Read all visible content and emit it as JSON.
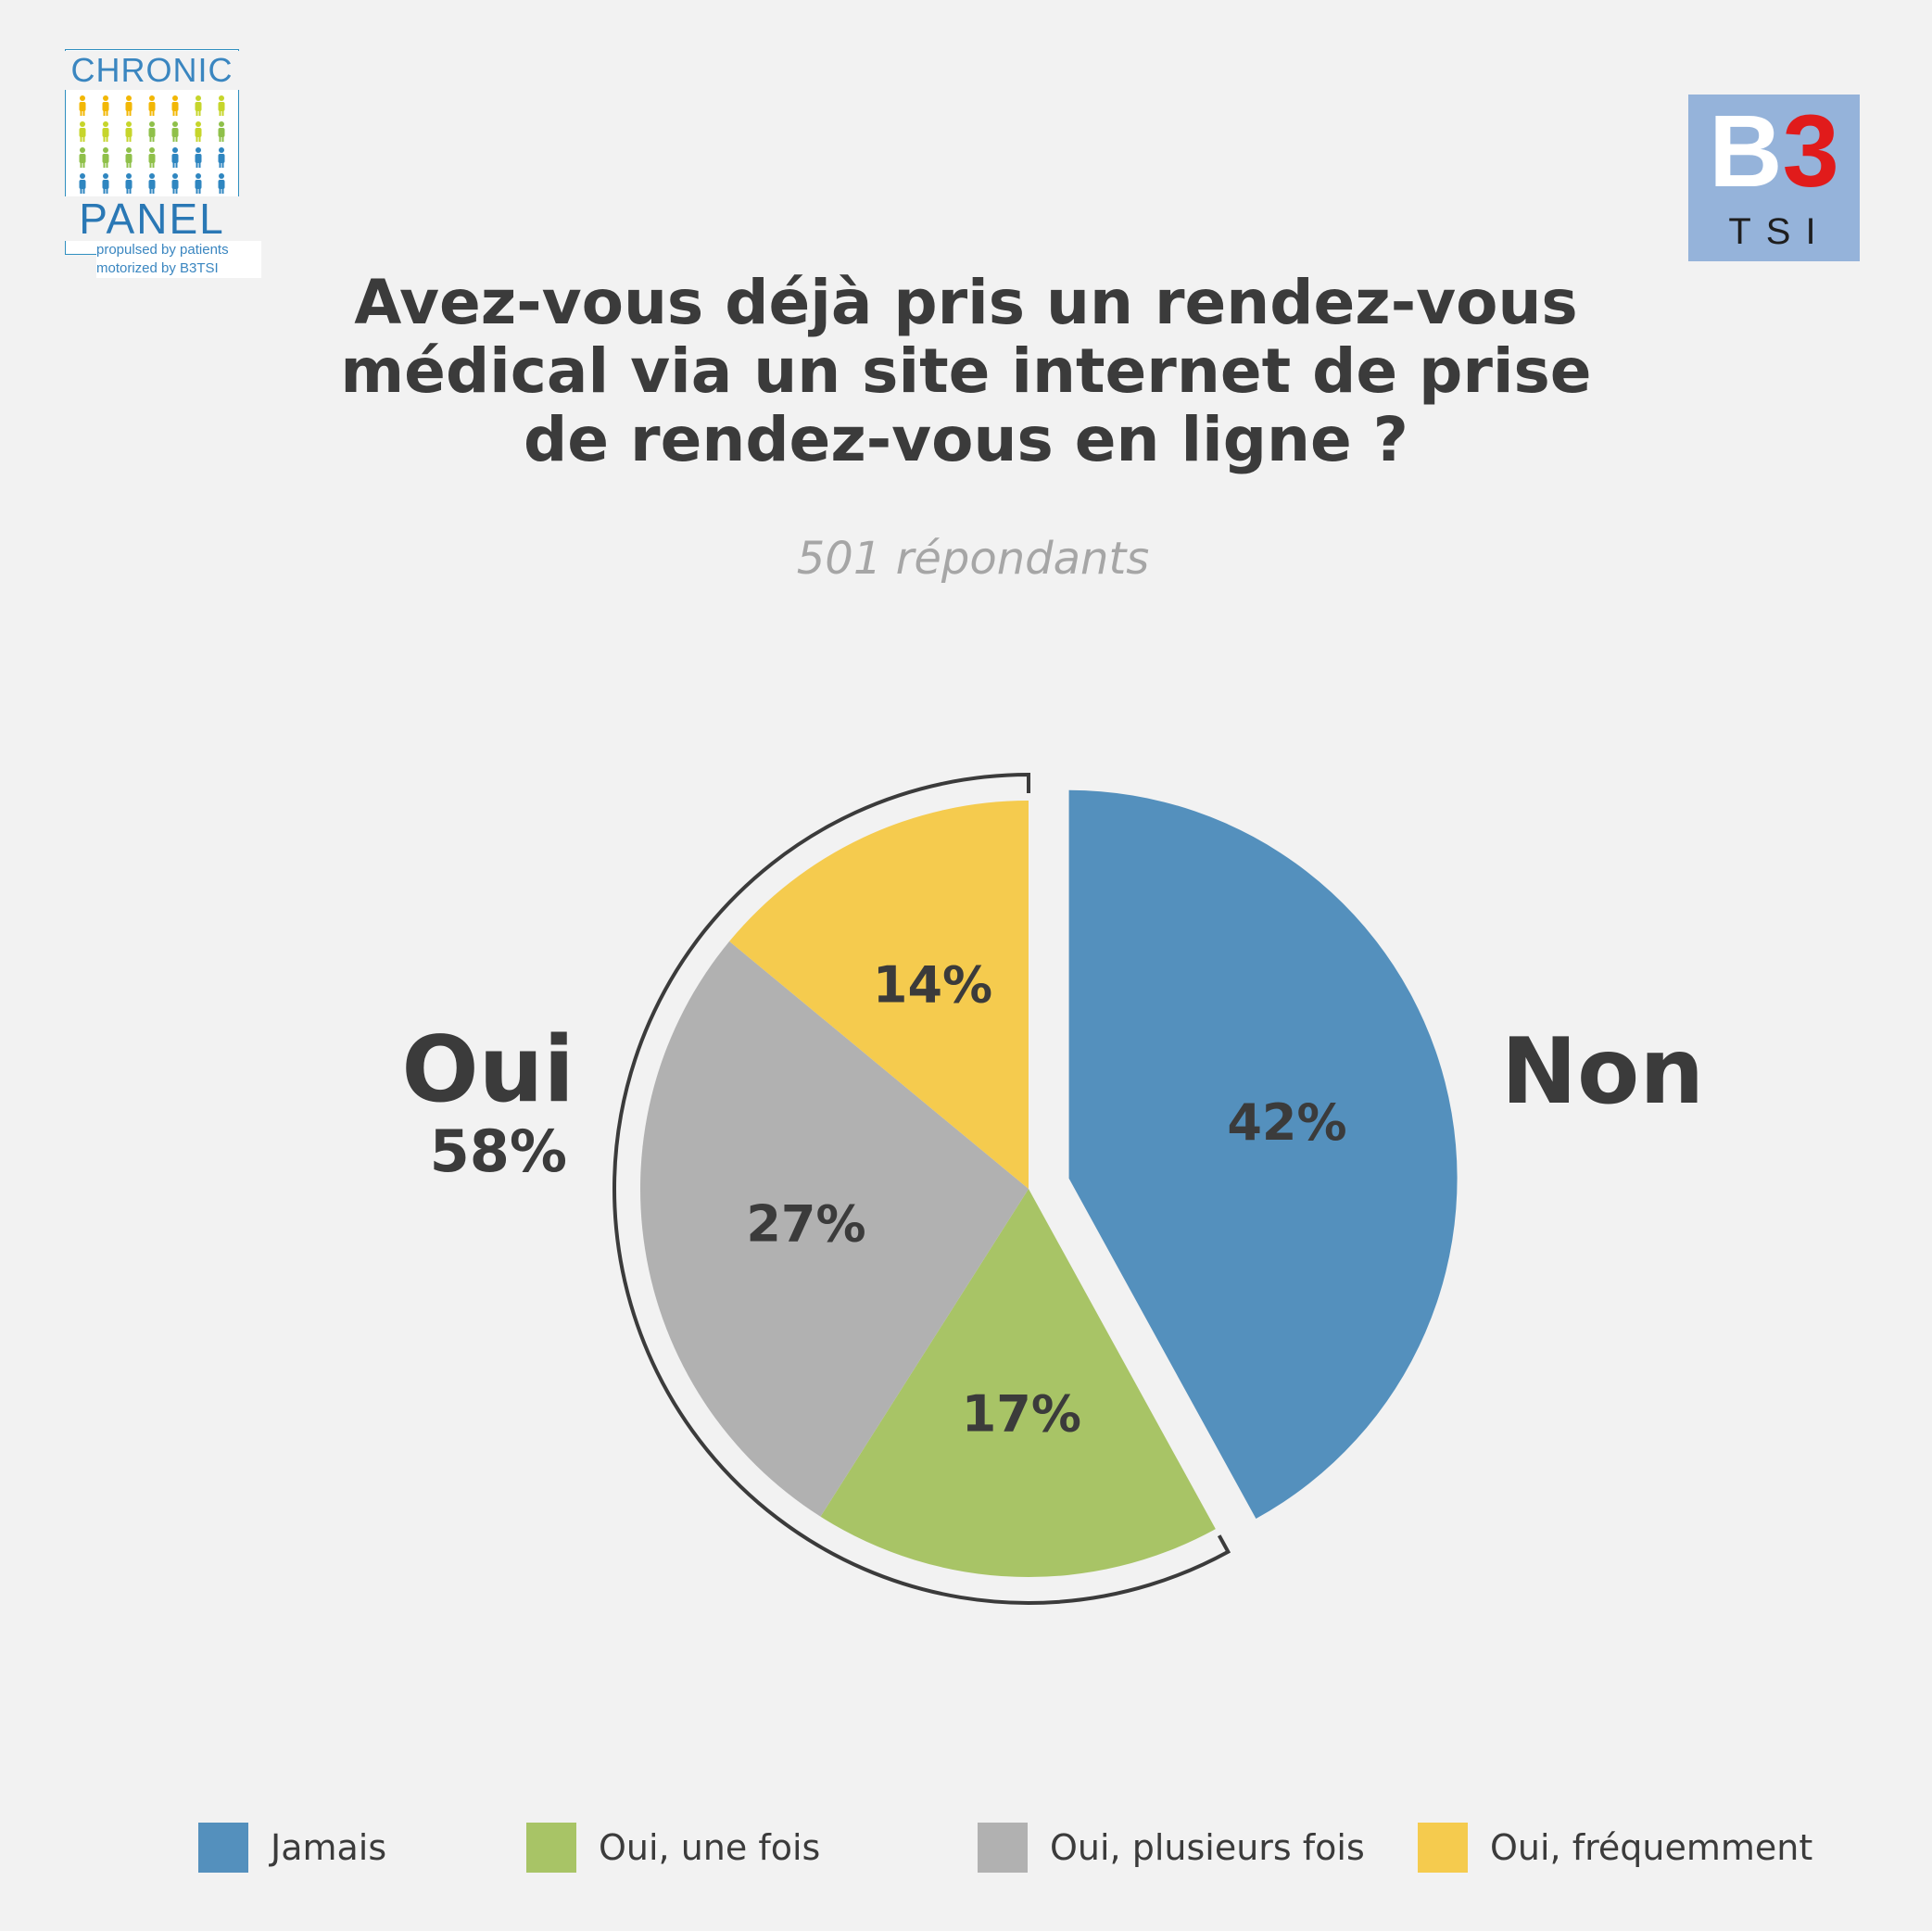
{
  "logos": {
    "chronic_panel": {
      "top": "CHRONIC",
      "bottom": "PANEL",
      "line1": "propulsed by patients",
      "line2": "motorized by B3TSI"
    },
    "b3tsi": {
      "b": "B",
      "three": "3",
      "tsi": "TSI"
    }
  },
  "header": {
    "title_lines": [
      "Avez-vous déjà pris un rendez-vous",
      "médical via un site internet de prise",
      "de rendez-vous en ligne ?"
    ],
    "subtitle": "501 répondants"
  },
  "groups": {
    "oui": {
      "label": "Oui",
      "pct": "58%"
    },
    "non": {
      "label": "Non"
    }
  },
  "colors": {
    "jamais": "#5490bd",
    "une_fois": "#a8c466",
    "plusieurs": "#b1b1b1",
    "frequemment": "#f5cb4e",
    "text": "#3b3b3b"
  },
  "chart_data": {
    "type": "pie",
    "title": "Avez-vous déjà pris un rendez-vous médical via un site internet de prise de rendez-vous en ligne ?",
    "subtitle": "501 répondants",
    "slices": [
      {
        "name": "Jamais",
        "value": 42,
        "label": "42%",
        "color": "#5490bd",
        "exploded": true
      },
      {
        "name": "Oui, une fois",
        "value": 17,
        "label": "17%",
        "color": "#a8c466"
      },
      {
        "name": "Oui, plusieurs fois",
        "value": 27,
        "label": "27%",
        "color": "#b1b1b1"
      },
      {
        "name": "Oui, fréquemment",
        "value": 14,
        "label": "14%",
        "color": "#f5cb4e"
      }
    ],
    "legend": [
      "Jamais",
      "Oui, une fois",
      "Oui, plusieurs fois",
      "Oui, fréquemment"
    ],
    "legend_position": "bottom"
  }
}
